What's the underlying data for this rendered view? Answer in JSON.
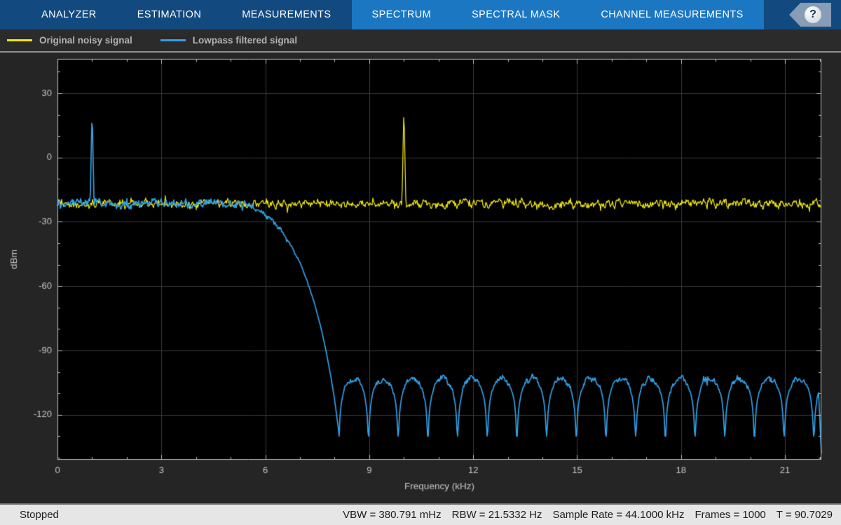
{
  "toolbar": {
    "tabs": [
      {
        "label": "ANALYZER",
        "highlighted": false,
        "active": false
      },
      {
        "label": "ESTIMATION",
        "highlighted": false,
        "active": false
      },
      {
        "label": "MEASUREMENTS",
        "highlighted": false,
        "active": false
      },
      {
        "label": "SPECTRUM",
        "highlighted": true,
        "active": true
      },
      {
        "label": "SPECTRAL MASK",
        "highlighted": true,
        "active": false
      },
      {
        "label": "CHANNEL MEASUREMENTS",
        "highlighted": true,
        "active": false
      }
    ],
    "help_label": "?",
    "colors": {
      "bar_bg": "#12497e",
      "highlight_bg": "#1b77c2",
      "text": "#ffffff"
    }
  },
  "legend": {
    "items": [
      {
        "label": "Original noisy signal",
        "color": "#f2ea0c"
      },
      {
        "label": "Lowpass filtered signal",
        "color": "#35a0e2"
      }
    ]
  },
  "chart_data": {
    "type": "line",
    "title": "",
    "xlabel": "Frequency (kHz)",
    "ylabel": "dBm",
    "xlim": [
      0,
      22.05
    ],
    "ylim": [
      -141,
      46
    ],
    "xticks": [
      0,
      3,
      6,
      9,
      12,
      15,
      18,
      21
    ],
    "yticks": [
      30,
      0,
      -30,
      -60,
      -90,
      -120
    ],
    "x_minor_step_khz": 1,
    "y_minor_step_db": 10,
    "grid": true,
    "legend_position": "top-strip",
    "plot_bg": "#000000",
    "grid_color": "#3a3a3a",
    "axis_color": "#bdbdbd",
    "tick_label_color": "#c8c8c8",
    "series": [
      {
        "name": "Original noisy signal",
        "color": "#f2ea0c",
        "shape": "noisy-flat",
        "noise_floor_dbm": -21.5,
        "noise_peak_to_peak_db": 6,
        "peak": {
          "freq_khz": 10,
          "level_dbm": 24
        }
      },
      {
        "name": "Lowpass filtered signal",
        "color": "#31a0e6",
        "shape": "lowpass-response",
        "passband_floor_dbm": -21.5,
        "passband_end_khz": 5.2,
        "peak": {
          "freq_khz": 1,
          "level_dbm": 23
        },
        "rolloff_keypoints": [
          [
            5.2,
            -21.5
          ],
          [
            5.5,
            -22.5
          ],
          [
            5.8,
            -24.5
          ],
          [
            6.1,
            -28
          ],
          [
            6.4,
            -33
          ],
          [
            6.7,
            -40
          ],
          [
            7.0,
            -49
          ],
          [
            7.2,
            -57
          ],
          [
            7.4,
            -67
          ],
          [
            7.6,
            -79
          ],
          [
            7.75,
            -90
          ],
          [
            7.9,
            -103
          ],
          [
            8.0,
            -113
          ],
          [
            8.08,
            -123
          ],
          [
            8.12,
            -128
          ]
        ],
        "stopband": {
          "start_khz": 8.12,
          "end_khz": 22.05,
          "lobe_period_khz": 0.857,
          "lobe_top_dbm": -103,
          "null_dbm": -131,
          "edge_drop_dbm": -137
        }
      }
    ]
  },
  "status_bar": {
    "state": "Stopped",
    "readouts": [
      "VBW = 380.791 mHz",
      "RBW = 21.5332 Hz",
      "Sample Rate = 44.1000 kHz",
      "Frames = 1000",
      "T = 90.7029"
    ]
  }
}
